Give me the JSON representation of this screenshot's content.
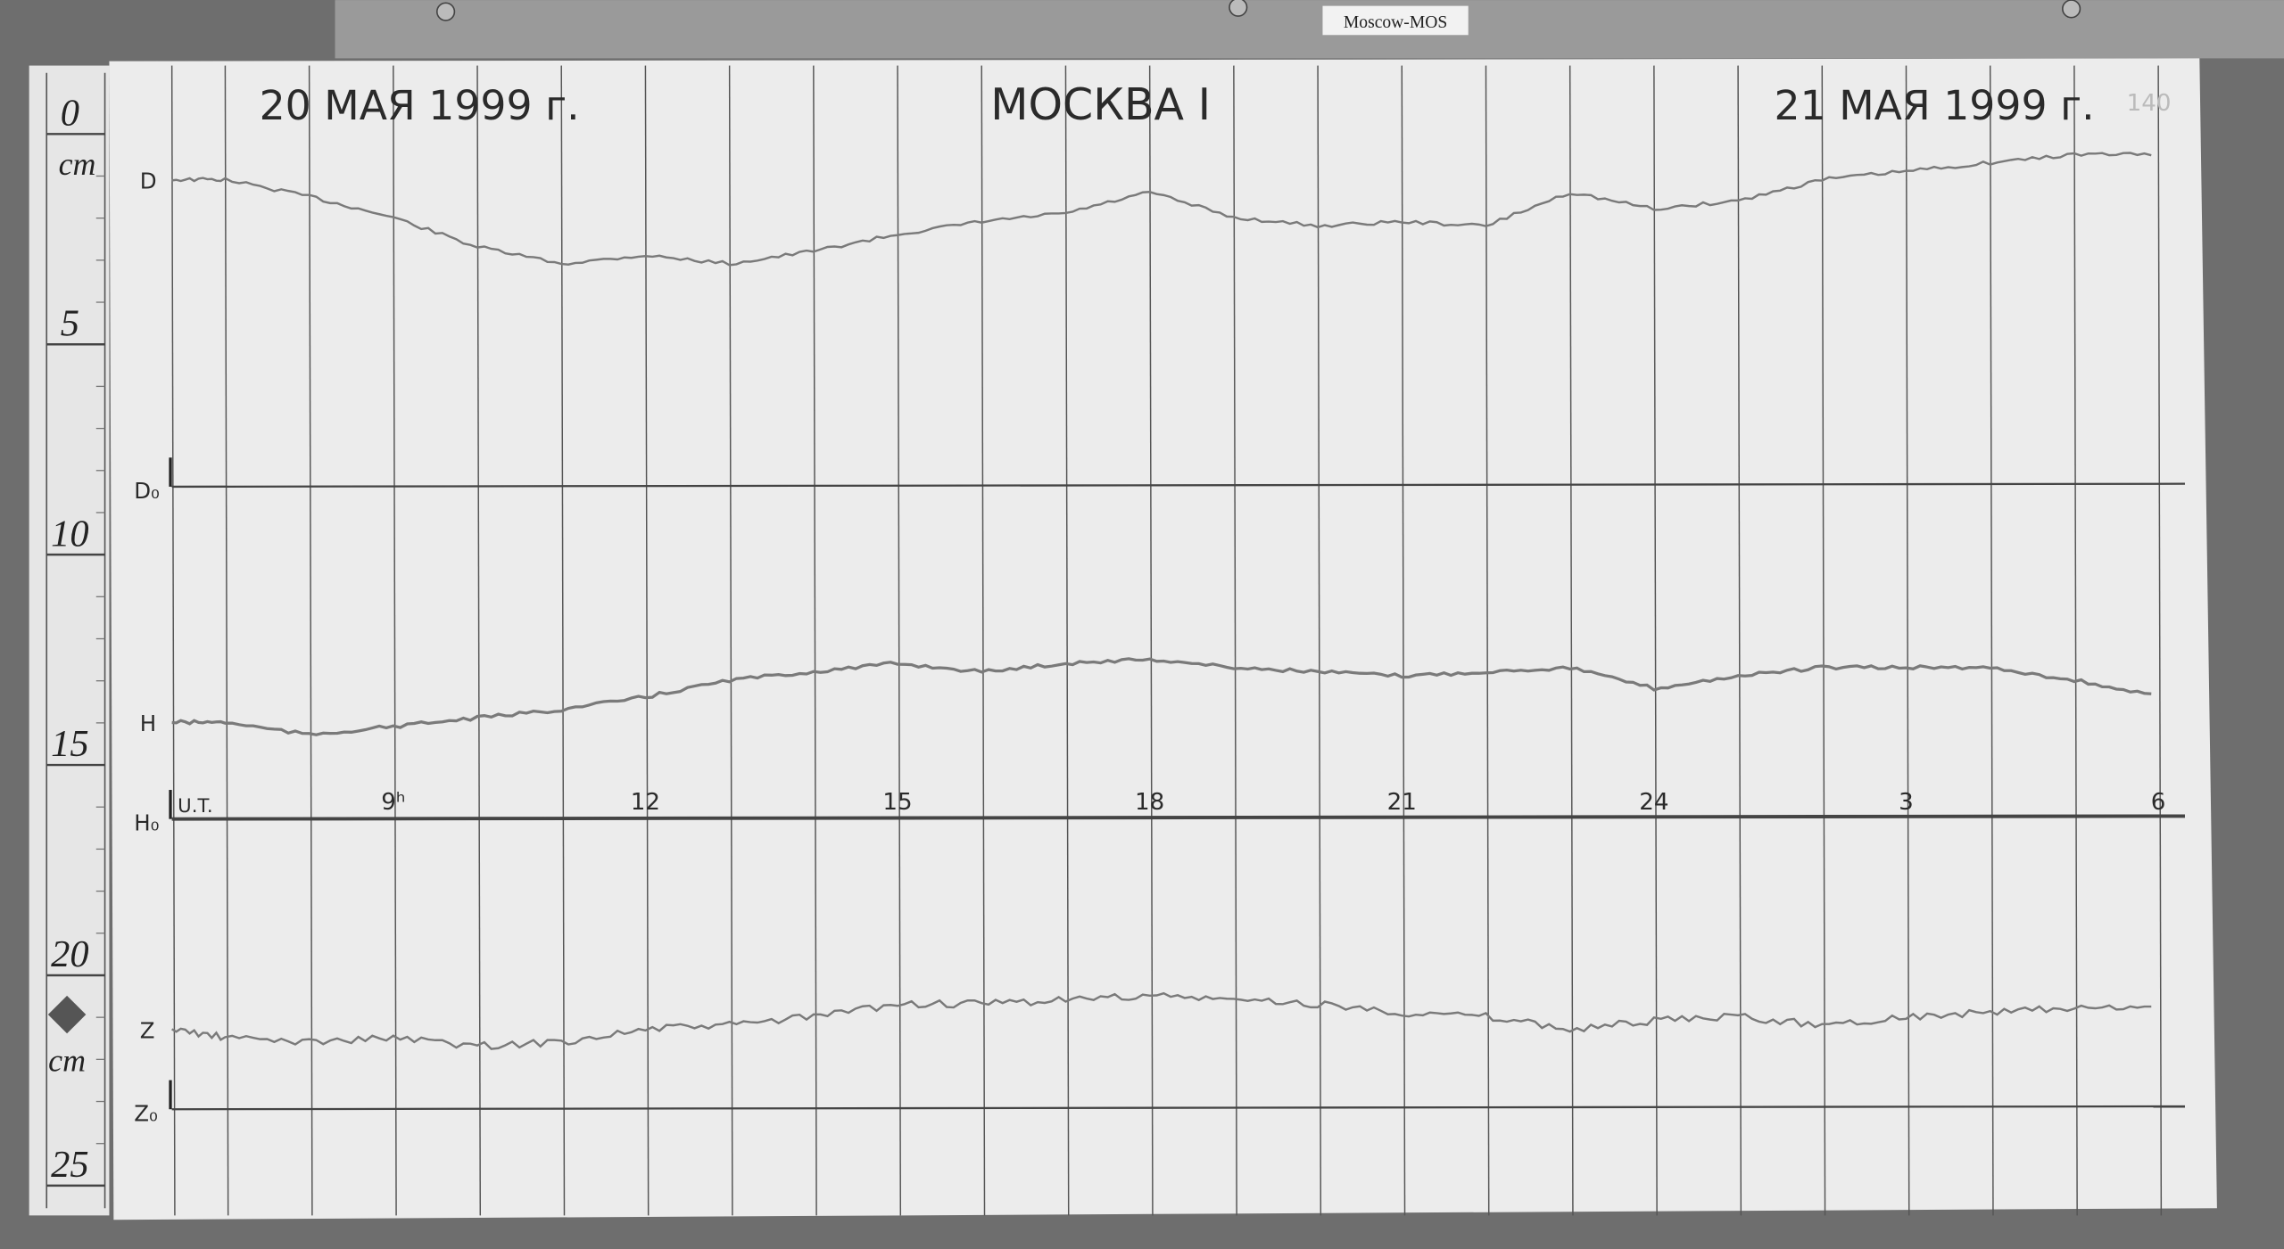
{
  "label_tag": "Moscow-MOS",
  "header": {
    "date_left": "20 МАЯ 1999 г.",
    "station": "МОСКВА I",
    "date_right": "21 МАЯ 1999 г.",
    "sheet_number": "140"
  },
  "ruler": {
    "unit": "cm",
    "ticks": [
      "0",
      "5",
      "10",
      "15",
      "20",
      "25"
    ],
    "unit_lower": "cm"
  },
  "chart_data": {
    "type": "line",
    "title": "МОСКВА I",
    "xlabel": "U.T.",
    "ylabel": "cm",
    "x_tick_labels": [
      "9ʰ",
      "12",
      "15",
      "18",
      "21",
      "24",
      "3",
      "6"
    ],
    "x_tick_hours": [
      9,
      12,
      15,
      18,
      21,
      24,
      27,
      30
    ],
    "xlim_hours": [
      6,
      30
    ],
    "ylim_cm": [
      0,
      25
    ],
    "grid": "vertical hourly lines",
    "x_hours": [
      6.4,
      7,
      8,
      9,
      10,
      11,
      12,
      13,
      14,
      15,
      16,
      17,
      18,
      19,
      20,
      21,
      22,
      23,
      24,
      25,
      26,
      27,
      28,
      29,
      30
    ],
    "baselines": [
      {
        "name": "D₀",
        "cm": 8.8
      },
      {
        "name": "H₀",
        "cm": 16.7
      },
      {
        "name": "Z₀",
        "cm": 23.6
      }
    ],
    "series": [
      {
        "name": "D",
        "values": [
          1.5,
          1.5,
          1.9,
          2.4,
          3.1,
          3.5,
          3.3,
          3.5,
          3.2,
          2.8,
          2.5,
          2.3,
          1.8,
          2.4,
          2.6,
          2.5,
          2.6,
          1.8,
          2.2,
          2.0,
          1.5,
          1.3,
          1.1,
          0.9,
          0.9
        ]
      },
      {
        "name": "H",
        "values": [
          14.4,
          14.4,
          14.7,
          14.5,
          14.3,
          14.1,
          13.8,
          13.4,
          13.2,
          13.0,
          13.2,
          13.0,
          12.9,
          13.1,
          13.2,
          13.3,
          13.2,
          13.1,
          13.6,
          13.3,
          13.1,
          13.1,
          13.1,
          13.4,
          13.8
        ]
      },
      {
        "name": "Z",
        "values": [
          21.7,
          21.9,
          22.0,
          21.9,
          22.1,
          22.0,
          21.7,
          21.6,
          21.4,
          21.1,
          21.1,
          21.0,
          20.9,
          21.0,
          21.1,
          21.3,
          21.4,
          21.7,
          21.5,
          21.4,
          21.6,
          21.4,
          21.3,
          21.2,
          21.2
        ]
      }
    ]
  },
  "colors": {
    "paper": "#ececec",
    "trace": "#7a7a7a",
    "grid": "#555555",
    "board": "#707070"
  }
}
